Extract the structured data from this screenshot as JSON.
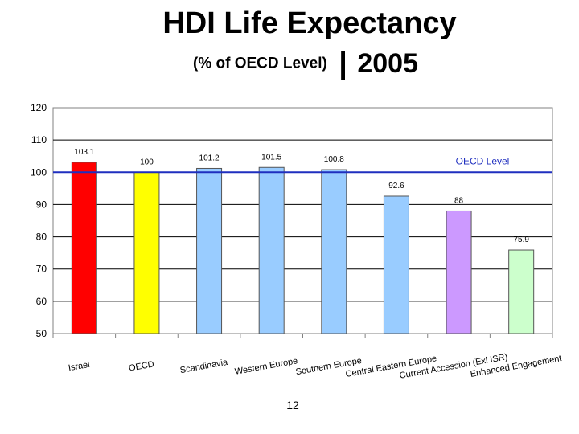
{
  "header": {
    "title": "HDI Life Expectancy",
    "subtitle": "(% of OECD Level)",
    "separator": "|",
    "year": "2005"
  },
  "page_number": "12",
  "chart_data": {
    "type": "bar",
    "title": "",
    "xlabel": "",
    "ylabel": "",
    "ylim": [
      50,
      120
    ],
    "yticks": [
      50,
      60,
      70,
      80,
      90,
      100,
      110,
      120
    ],
    "grid": true,
    "legend": "none",
    "categories": [
      "Israel",
      "OECD",
      "Scandinavia",
      "Western Europe",
      "Southern Europe",
      "Central Eastern Europe",
      "Current Accession (Exl ISR)",
      "Enhanced Engagement"
    ],
    "values": [
      103.1,
      100,
      101.2,
      101.5,
      100.8,
      92.6,
      88,
      75.9
    ],
    "value_labels": [
      "103.1",
      "100",
      "101.2",
      "101.5",
      "100.8",
      "92.6",
      "88",
      "75.9"
    ],
    "bar_colors": [
      "#ff0000",
      "#ffff00",
      "#99ccff",
      "#99ccff",
      "#99ccff",
      "#99ccff",
      "#cc99ff",
      "#ccffcc"
    ],
    "reference_line": {
      "value": 100,
      "label": "OECD Level",
      "color": "#1f2fbf"
    }
  }
}
